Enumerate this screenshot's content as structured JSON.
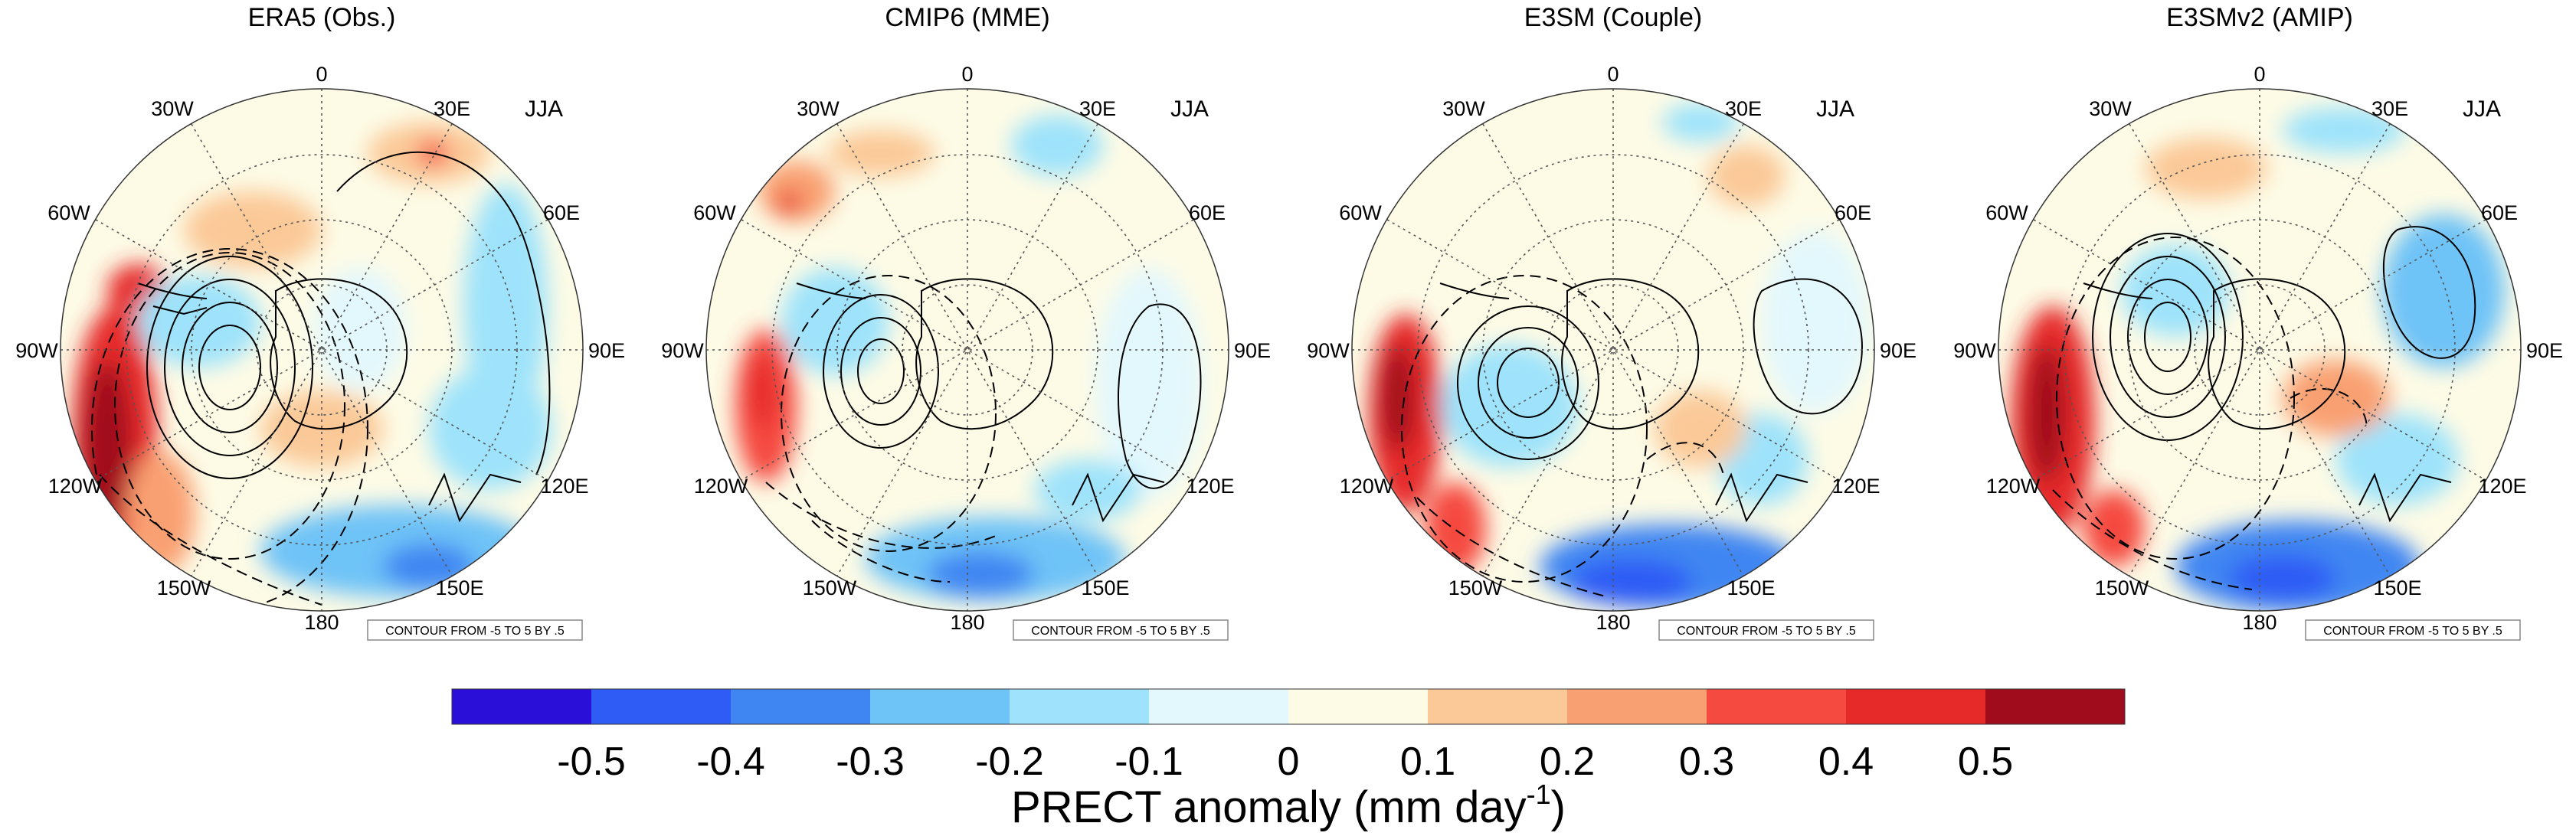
{
  "figure": {
    "season_label": "JJA",
    "contour_note": "CONTOUR FROM -5 TO 5 BY .5",
    "panels": [
      {
        "title": "ERA5 (Obs.)"
      },
      {
        "title": "CMIP6 (MME)"
      },
      {
        "title": "E3SM (Couple)"
      },
      {
        "title": "E3SMv2 (AMIP)"
      }
    ],
    "longitude_labels": [
      "0",
      "30E",
      "60E",
      "90E",
      "120E",
      "150E",
      "180",
      "150W",
      "120W",
      "90W",
      "60W",
      "30W"
    ]
  },
  "colorbar": {
    "title_prefix": "PRECT anomaly (mm day",
    "title_exponent": "-1",
    "title_suffix": ")",
    "ticks": [
      "-0.5",
      "-0.4",
      "-0.3",
      "-0.2",
      "-0.1",
      "0",
      "0.1",
      "0.2",
      "0.3",
      "0.4",
      "0.5"
    ],
    "colors": [
      "#2a0fd9",
      "#2f5cf5",
      "#3f86f2",
      "#6ec3f7",
      "#9ee3fb",
      "#e3f8fd",
      "#fdfbe6",
      "#fbc998",
      "#f9a072",
      "#f54a40",
      "#e62a2a",
      "#a00c1c"
    ]
  }
}
